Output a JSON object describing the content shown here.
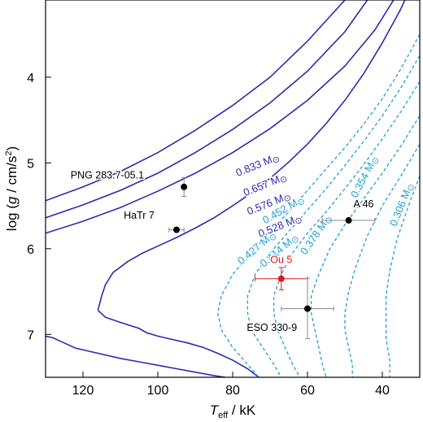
{
  "chart_data": {
    "type": "line",
    "xlabel": {
      "main": "T",
      "sub": "eff",
      "unit": " / kK"
    },
    "ylabel": {
      "pre": "log (",
      "g": "g",
      "mid": " / cm/s",
      "sup": "2",
      "post": ")"
    },
    "xlim": [
      130,
      30
    ],
    "ylim": [
      7.5,
      3.1
    ],
    "x_reversed": true,
    "y_reversed": true,
    "xticks": [
      120,
      100,
      80,
      60,
      40
    ],
    "yticks": [
      4,
      5,
      6,
      7
    ],
    "grid": false,
    "colors": {
      "solid": "#2b2bb0",
      "dashed": "#1e9ed6",
      "point": "#000000",
      "highlight": "#e0191b",
      "errorbar": "#888888"
    },
    "series": [
      {
        "label": "0.833 M",
        "style": "solid",
        "label_at": [
          73,
          5.06
        ],
        "label_angle": -22,
        "points": [
          [
            130,
            5.44
          ],
          [
            120,
            5.28
          ],
          [
            110,
            5.1
          ],
          [
            100,
            4.88
          ],
          [
            90,
            4.62
          ],
          [
            80,
            4.33
          ],
          [
            70,
            4.0
          ],
          [
            60,
            3.58
          ],
          [
            50,
            3.1
          ]
        ]
      },
      {
        "label": "0.657 M",
        "style": "solid",
        "label_at": [
          71,
          5.29
        ],
        "label_angle": -22,
        "points": [
          [
            130,
            5.64
          ],
          [
            120,
            5.49
          ],
          [
            110,
            5.32
          ],
          [
            100,
            5.12
          ],
          [
            90,
            4.88
          ],
          [
            80,
            4.61
          ],
          [
            70,
            4.3
          ],
          [
            60,
            3.93
          ],
          [
            50,
            3.47
          ],
          [
            44,
            3.1
          ]
        ]
      },
      {
        "label": "0.576 M",
        "style": "solid",
        "label_at": [
          70,
          5.51
        ],
        "label_angle": -22,
        "points": [
          [
            130,
            5.82
          ],
          [
            120,
            5.68
          ],
          [
            110,
            5.52
          ],
          [
            100,
            5.33
          ],
          [
            90,
            5.12
          ],
          [
            80,
            4.88
          ],
          [
            70,
            4.6
          ],
          [
            60,
            4.27
          ],
          [
            50,
            3.87
          ],
          [
            42,
            3.45
          ],
          [
            37,
            3.1
          ]
        ]
      },
      {
        "label": "0.528 M",
        "style": "solid",
        "label_at": [
          67,
          5.77
        ],
        "label_angle": -22,
        "points": [
          [
            116,
            6.72
          ],
          [
            115,
            6.55
          ],
          [
            114,
            6.42
          ],
          [
            112,
            6.28
          ],
          [
            108,
            6.15
          ],
          [
            104,
            6.05
          ],
          [
            100,
            5.97
          ],
          [
            95,
            5.87
          ],
          [
            90,
            5.76
          ],
          [
            85,
            5.64
          ],
          [
            80,
            5.5
          ],
          [
            75,
            5.35
          ],
          [
            70,
            5.18
          ],
          [
            65,
            4.99
          ],
          [
            60,
            4.78
          ],
          [
            55,
            4.54
          ],
          [
            50,
            4.27
          ],
          [
            45,
            3.96
          ],
          [
            40,
            3.6
          ],
          [
            35,
            3.2
          ],
          [
            34,
            3.1
          ]
        ]
      },
      {
        "label": "",
        "style": "solid",
        "points": [
          [
            116,
            6.72
          ],
          [
            114,
            6.8
          ],
          [
            110,
            6.86
          ],
          [
            105,
            6.93
          ],
          [
            103,
            6.98
          ],
          [
            100,
            7.02
          ],
          [
            96,
            7.06
          ],
          [
            92,
            7.1
          ],
          [
            88,
            7.15
          ],
          [
            84,
            7.22
          ],
          [
            80,
            7.3
          ],
          [
            76,
            7.4
          ],
          [
            73,
            7.5
          ]
        ]
      },
      {
        "label": "",
        "style": "solid",
        "points": [
          [
            130,
            7.02
          ],
          [
            128,
            7.04
          ],
          [
            125,
            7.1
          ],
          [
            122,
            7.16
          ],
          [
            118,
            7.2
          ],
          [
            114,
            7.24
          ],
          [
            110,
            7.28
          ],
          [
            105,
            7.32
          ],
          [
            100,
            7.36
          ],
          [
            95,
            7.4
          ],
          [
            90,
            7.44
          ],
          [
            85,
            7.48
          ],
          [
            82,
            7.5
          ]
        ]
      },
      {
        "label": "0.452 M",
        "style": "dashed",
        "label_at": [
          66,
          5.58
        ],
        "label_angle": -30,
        "points": [
          [
            30,
            3.5
          ],
          [
            35,
            3.9
          ],
          [
            40,
            4.25
          ],
          [
            45,
            4.55
          ],
          [
            50,
            4.82
          ],
          [
            55,
            5.07
          ],
          [
            60,
            5.32
          ],
          [
            65,
            5.57
          ],
          [
            70,
            5.8
          ],
          [
            75,
            6.05
          ],
          [
            80,
            6.3
          ],
          [
            83,
            6.55
          ],
          [
            84,
            6.75
          ],
          [
            83,
            6.95
          ],
          [
            80,
            7.15
          ],
          [
            76,
            7.35
          ],
          [
            73,
            7.5
          ]
        ]
      },
      {
        "label": "0.427 M",
        "style": "dashed",
        "label_at": [
          73,
          6.02
        ],
        "label_angle": -40,
        "points": [
          [
            30,
            3.75
          ],
          [
            35,
            4.12
          ],
          [
            40,
            4.45
          ],
          [
            45,
            4.75
          ],
          [
            50,
            5.03
          ],
          [
            55,
            5.3
          ],
          [
            60,
            5.55
          ],
          [
            65,
            5.8
          ],
          [
            70,
            6.05
          ],
          [
            74,
            6.3
          ],
          [
            76,
            6.55
          ],
          [
            76,
            6.75
          ],
          [
            75,
            6.95
          ],
          [
            72,
            7.15
          ],
          [
            69,
            7.35
          ],
          [
            67,
            7.5
          ]
        ]
      },
      {
        "label": "0.414 M",
        "style": "dashed",
        "label_at": [
          67,
          6.05
        ],
        "label_angle": -40,
        "points": [
          [
            30,
            4.05
          ],
          [
            35,
            4.4
          ],
          [
            40,
            4.72
          ],
          [
            45,
            5.02
          ],
          [
            50,
            5.3
          ],
          [
            55,
            5.57
          ],
          [
            60,
            5.82
          ],
          [
            64,
            6.05
          ],
          [
            67,
            6.3
          ],
          [
            69,
            6.55
          ],
          [
            69,
            6.75
          ],
          [
            68,
            6.95
          ],
          [
            66,
            7.15
          ],
          [
            64,
            7.35
          ],
          [
            62,
            7.5
          ]
        ]
      },
      {
        "label": "0.378 M",
        "style": "dashed",
        "label_at": [
          57,
          5.86
        ],
        "label_angle": -55,
        "points": [
          [
            30,
            4.45
          ],
          [
            35,
            4.8
          ],
          [
            40,
            5.12
          ],
          [
            45,
            5.42
          ],
          [
            50,
            5.72
          ],
          [
            54,
            6.0
          ],
          [
            57,
            6.3
          ],
          [
            59,
            6.55
          ],
          [
            59,
            6.75
          ],
          [
            58,
            6.95
          ],
          [
            57,
            7.15
          ],
          [
            56,
            7.35
          ],
          [
            55,
            7.5
          ]
        ]
      },
      {
        "label": "0.354 M",
        "style": "dashed",
        "label_at": [
          44,
          5.18
        ],
        "label_angle": -62,
        "points": [
          [
            30,
            4.78
          ],
          [
            35,
            5.15
          ],
          [
            40,
            5.5
          ],
          [
            44,
            5.85
          ],
          [
            47,
            6.2
          ],
          [
            49,
            6.5
          ],
          [
            50,
            6.75
          ],
          [
            50,
            6.95
          ],
          [
            49,
            7.15
          ],
          [
            48,
            7.35
          ],
          [
            48,
            7.5
          ]
        ]
      },
      {
        "label": "0.306 M",
        "style": "dashed",
        "label_at": [
          34,
          5.5
        ],
        "label_angle": -68,
        "points": [
          [
            30,
            5.15
          ],
          [
            33,
            5.5
          ],
          [
            36,
            5.88
          ],
          [
            38,
            6.25
          ],
          [
            39,
            6.55
          ],
          [
            39,
            6.8
          ],
          [
            39,
            7.05
          ],
          [
            38,
            7.3
          ],
          [
            38,
            7.5
          ]
        ]
      }
    ],
    "objects": [
      {
        "name": "PNG 283.7-05.1",
        "x": 93,
        "y": 5.28,
        "xerr": 0,
        "yerr": 0.11,
        "color": "black",
        "label_at": [
          113.5,
          5.18
        ]
      },
      {
        "name": "HaTr 7",
        "x": 95,
        "y": 5.78,
        "xerr": 2,
        "yerr": 0,
        "color": "black",
        "label_at": [
          105,
          5.65
        ]
      },
      {
        "name": "A 46",
        "x": 49,
        "y": 5.67,
        "xerr": 7,
        "yerr": 0,
        "color": "black",
        "label_at": [
          45,
          5.52
        ]
      },
      {
        "name": "Ou 5",
        "x": 67,
        "y": 6.35,
        "xerr": 7,
        "yerr": 0.13,
        "color": "red",
        "label_at": [
          67,
          6.17
        ]
      },
      {
        "name": "ESO 330-9",
        "x": 60,
        "y": 6.7,
        "xerr": 7,
        "yerr": 0.35,
        "color": "black",
        "label_at": [
          69.5,
          6.96
        ]
      }
    ]
  }
}
